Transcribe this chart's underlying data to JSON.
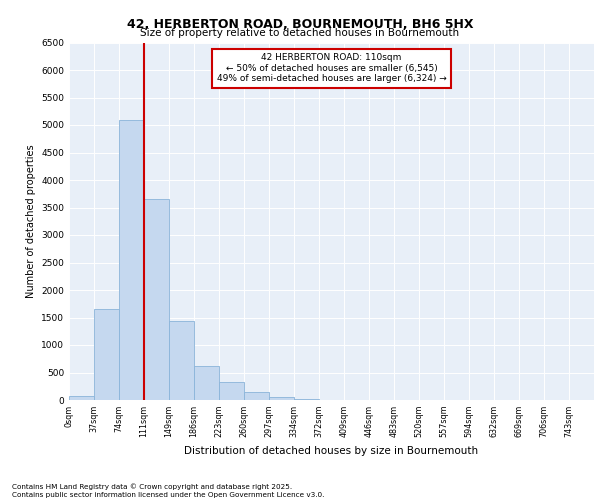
{
  "title_line1": "42, HERBERTON ROAD, BOURNEMOUTH, BH6 5HX",
  "title_line2": "Size of property relative to detached houses in Bournemouth",
  "xlabel": "Distribution of detached houses by size in Bournemouth",
  "ylabel": "Number of detached properties",
  "bar_labels": [
    "0sqm",
    "37sqm",
    "74sqm",
    "111sqm",
    "149sqm",
    "186sqm",
    "223sqm",
    "260sqm",
    "297sqm",
    "334sqm",
    "372sqm",
    "409sqm",
    "446sqm",
    "483sqm",
    "520sqm",
    "557sqm",
    "594sqm",
    "632sqm",
    "669sqm",
    "706sqm",
    "743sqm"
  ],
  "bar_values": [
    70,
    1650,
    5100,
    3650,
    1440,
    620,
    320,
    150,
    60,
    20,
    5,
    3,
    2,
    1,
    1,
    1,
    0,
    0,
    0,
    0,
    0
  ],
  "bar_color": "#c5d8ef",
  "bar_edgecolor": "#8ab4d9",
  "ylim": [
    0,
    6500
  ],
  "yticks": [
    0,
    500,
    1000,
    1500,
    2000,
    2500,
    3000,
    3500,
    4000,
    4500,
    5000,
    5500,
    6000,
    6500
  ],
  "annotation_line1": "42 HERBERTON ROAD: 110sqm",
  "annotation_line2": "← 50% of detached houses are smaller (6,545)",
  "annotation_line3": "49% of semi-detached houses are larger (6,324) →",
  "vline_color": "#cc0000",
  "annotation_box_edgecolor": "#cc0000",
  "background_color": "#e8eff8",
  "footer_line1": "Contains HM Land Registry data © Crown copyright and database right 2025.",
  "footer_line2": "Contains public sector information licensed under the Open Government Licence v3.0."
}
